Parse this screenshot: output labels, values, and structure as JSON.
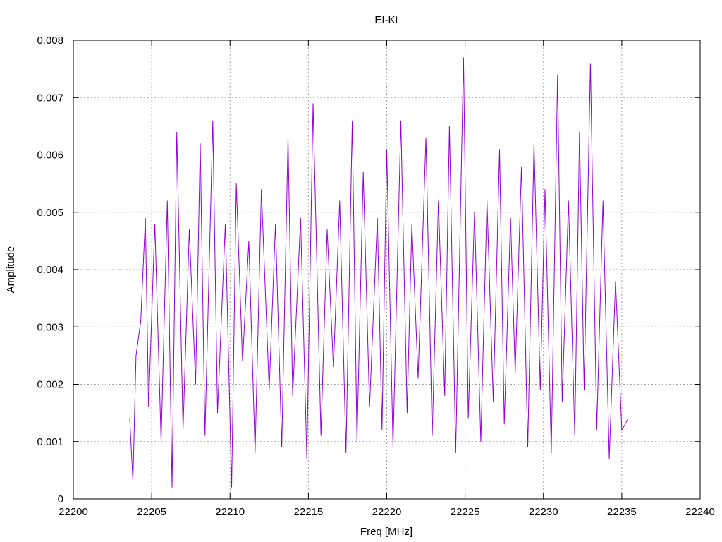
{
  "chart_data": {
    "type": "line",
    "title": "Ef-Kt",
    "xlabel": "Freq [MHz]",
    "ylabel": "Amplitude",
    "xlim": [
      22200,
      22240
    ],
    "ylim": [
      0,
      0.008
    ],
    "xticks": [
      22200,
      22205,
      22210,
      22215,
      22220,
      22225,
      22230,
      22235,
      22240
    ],
    "yticks": [
      0,
      0.001,
      0.002,
      0.003,
      0.004,
      0.005,
      0.006,
      0.007,
      0.008
    ],
    "xtick_labels": [
      "22200",
      "22205",
      "22210",
      "22215",
      "22220",
      "22225",
      "22230",
      "22235",
      "22240"
    ],
    "ytick_labels": [
      "0",
      "0.001",
      "0.002",
      "0.003",
      "0.004",
      "0.005",
      "0.006",
      "0.007",
      "0.008"
    ],
    "grid": true,
    "line_color": "#9400d3",
    "series": [
      {
        "x": [
          22203.6,
          22203.8,
          22204.0,
          22204.3,
          22204.6,
          22204.8,
          22205.2,
          22205.6,
          22206.0,
          22206.3,
          22206.6,
          22207.0,
          22207.4,
          22207.8,
          22208.1,
          22208.4,
          22208.9,
          22209.2,
          22209.7,
          22210.1,
          22210.4,
          22210.8,
          22211.2,
          22211.6,
          22212.0,
          22212.5,
          22212.9,
          22213.3,
          22213.7,
          22214.0,
          22214.5,
          22214.9,
          22215.3,
          22215.8,
          22216.2,
          22216.6,
          22217.0,
          22217.4,
          22217.8,
          22218.1,
          22218.5,
          22218.9,
          22219.4,
          22219.7,
          22220.0,
          22220.4,
          22220.9,
          22221.3,
          22221.6,
          22222.0,
          22222.5,
          22222.9,
          22223.3,
          22223.7,
          22224.0,
          22224.4,
          22224.9,
          22225.2,
          22225.6,
          22226.0,
          22226.4,
          22226.8,
          22227.2,
          22227.5,
          22227.9,
          22228.2,
          22228.6,
          22229.0,
          22229.4,
          22229.8,
          22230.1,
          22230.5,
          22230.9,
          22231.2,
          22231.6,
          22232.0,
          22232.3,
          22232.6,
          22233.0,
          22233.4,
          22233.8,
          22234.2,
          22234.6,
          22235.0,
          22235.4
        ],
        "values": [
          0.0014,
          0.0003,
          0.0025,
          0.0031,
          0.0049,
          0.0016,
          0.0048,
          0.001,
          0.0052,
          0.0002,
          0.0064,
          0.0012,
          0.0047,
          0.002,
          0.0062,
          0.0011,
          0.0066,
          0.0015,
          0.0048,
          0.0002,
          0.0055,
          0.0024,
          0.0045,
          0.0008,
          0.0054,
          0.0019,
          0.0048,
          0.0009,
          0.0063,
          0.0018,
          0.0049,
          0.0007,
          0.0069,
          0.0011,
          0.0047,
          0.0023,
          0.0052,
          0.0008,
          0.0066,
          0.001,
          0.0057,
          0.0016,
          0.0049,
          0.0012,
          0.0061,
          0.0009,
          0.0066,
          0.0015,
          0.0048,
          0.0021,
          0.0063,
          0.0011,
          0.0052,
          0.0018,
          0.0065,
          0.0008,
          0.0077,
          0.0014,
          0.005,
          0.001,
          0.0052,
          0.0017,
          0.0061,
          0.0013,
          0.0049,
          0.0022,
          0.0058,
          0.0009,
          0.0062,
          0.0019,
          0.0054,
          0.0008,
          0.0074,
          0.0017,
          0.0052,
          0.0011,
          0.0064,
          0.0019,
          0.0076,
          0.0012,
          0.0052,
          0.0007,
          0.0038,
          0.0012,
          0.0014
        ]
      }
    ]
  }
}
